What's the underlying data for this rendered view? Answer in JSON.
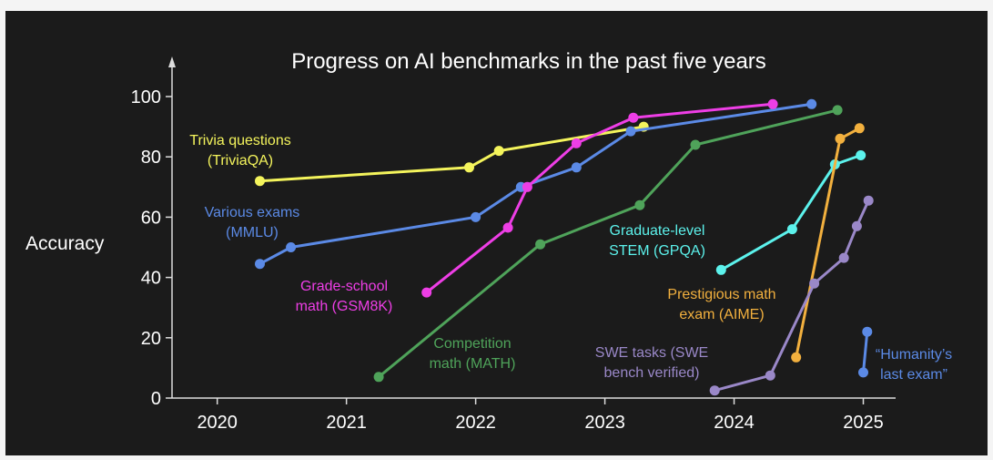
{
  "chart_data": {
    "type": "line",
    "title": "Progress on AI benchmarks in the past five years",
    "ylabel": "Accuracy",
    "xlabel": "",
    "xlim": [
      2019.65,
      2025.25
    ],
    "ylim": [
      0,
      100
    ],
    "x_ticks": [
      2020,
      2021,
      2022,
      2023,
      2024,
      2025
    ],
    "y_ticks": [
      0,
      20,
      40,
      60,
      80,
      100
    ],
    "grid": false,
    "legend": "inline labels",
    "series": [
      {
        "name": "Trivia questions (TriviaQA)",
        "label_lines": [
          "Trivia questions",
          "(TriviaQA)"
        ],
        "color": "#f4f45c",
        "x": [
          2020.33,
          2021.95,
          2022.18,
          2023.3
        ],
        "y": [
          72,
          76.5,
          82,
          90
        ]
      },
      {
        "name": "Various exams (MMLU)",
        "label_lines": [
          "Various exams",
          "(MMLU)"
        ],
        "color": "#5b8ae6",
        "x": [
          2020.33,
          2020.57,
          2022.0,
          2022.35,
          2022.78,
          2023.2,
          2024.6
        ],
        "y": [
          44.5,
          50,
          60,
          70,
          76.5,
          88.5,
          97.5
        ]
      },
      {
        "name": "Grade-school math (GSM8K)",
        "label_lines": [
          "Grade-school",
          "math (GSM8K)"
        ],
        "color": "#ee3ee6",
        "x": [
          2021.62,
          2022.25,
          2022.4,
          2022.78,
          2023.22,
          2024.3
        ],
        "y": [
          35,
          56.5,
          70,
          84.5,
          93,
          97.5
        ]
      },
      {
        "name": "Competition math (MATH)",
        "label_lines": [
          "Competition",
          "math (MATH)"
        ],
        "color": "#4fa35a",
        "x": [
          2021.25,
          2022.5,
          2023.27,
          2023.7,
          2024.8
        ],
        "y": [
          7,
          51,
          64,
          84,
          95.5
        ]
      },
      {
        "name": "Graduate-level STEM (GPQA)",
        "label_lines": [
          "Graduate-level",
          "STEM (GPQA)"
        ],
        "color": "#5cf2ec",
        "x": [
          2023.9,
          2024.45,
          2024.78,
          2024.98
        ],
        "y": [
          42.5,
          56,
          77.5,
          80.5
        ]
      },
      {
        "name": "Prestigious math exam (AIME)",
        "label_lines": [
          "Prestigious math",
          "exam (AIME)"
        ],
        "color": "#f2b03e",
        "x": [
          2024.48,
          2024.82,
          2024.97
        ],
        "y": [
          13.5,
          86,
          89.5
        ]
      },
      {
        "name": "SWE tasks (SWE bench verified)",
        "label_lines": [
          "SWE tasks (SWE",
          "bench verified)"
        ],
        "color": "#9a88c8",
        "x": [
          2023.85,
          2024.28,
          2024.62,
          2024.85,
          2024.95,
          2025.04
        ],
        "y": [
          2.5,
          7.5,
          38,
          46.5,
          57,
          65.5
        ]
      },
      {
        "name": "“Humanity’s last exam”",
        "label_lines": [
          "“Humanity’s",
          "last exam”"
        ],
        "color": "#5b8ae6",
        "x": [
          2025.0,
          2025.03
        ],
        "y": [
          8.5,
          22
        ]
      }
    ]
  },
  "colors": {
    "background": "#1b1b1b",
    "axis": "#dddddd",
    "text": "#ffffff"
  }
}
